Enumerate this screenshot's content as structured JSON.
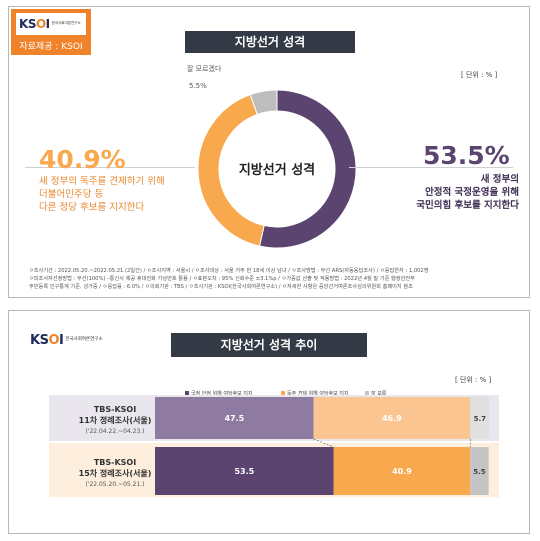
{
  "panel1": {
    "logo": {
      "brand_text": "KSOI",
      "sub_text": "한국사회여론연구소",
      "source_caption": "자료제공 : KSOI"
    },
    "title": "지방선거 성격",
    "unit": "[ 단위 : % ]",
    "center_label": "지방선거 성격",
    "left_block": {
      "value": "40.9%",
      "lines": [
        "새 정부의 독주를 견제하기 위해",
        "더불어민주당 등",
        "다른 정당 후보를 지지한다"
      ]
    },
    "right_block": {
      "value": "53.5%",
      "lines": [
        "새 정부의",
        "안정적 국정운영을 위해",
        "국민의힘 후보를 지지한다"
      ]
    },
    "dk_block": {
      "label": "잘 모르겠다",
      "value": "5.5%"
    },
    "notes": [
      "ㅇ조사기간 : 2022.05.20.~2022.05.21.(2일간)  /  ㅇ조사지역 : 서울시  /  ㅇ조사대상 : 서울 거주 만 18세 이상 남녀  /  ㅇ조사방법 : 무선 ARS(자동응답조사)  /  ㅇ응답완자 : 1,002명",
      "ㅇ피조사자선정방법 : 무선(100%) –통신사 제공 휴대전화 가상번호 활용  /  ㅇ표본오차 : 95% 신뢰수준 ±3.1%p  /  ㅇ가중값 산출 및 적용방법 : 2022년 4월 말 기준 행정안전부",
      "주민등록 인구통계 기준, 성가중  /  ㅇ응답률 : 6.0%  /  ㅇ의뢰기관 : TBS  /  ㅇ조사기관 : KSOI(한국사회여론연구소)  /  ㅇ자세한 사항은 중앙선거여론조사심의위원회 홈페이지 참조"
    ]
  },
  "panel2": {
    "logo": {
      "brand_text": "KSOI",
      "sub_text": "한국사회여론연구소"
    },
    "title": "지방선거 성격 추이",
    "unit": "[ 단위 : % ]"
  },
  "colors": {
    "stable": "#5b4470",
    "check": "#f8a84d",
    "dk": "#c4c4c4",
    "stable_light": "#8f7aa1",
    "check_light": "#fbc591",
    "orange": "#f0832a",
    "navy": "#1d2c5a"
  },
  "chart_data": [
    {
      "type": "pie",
      "title": "지방선거 성격",
      "categories": [
        "새 정부의 안정적 국정운영을 위해 국민의힘 후보를 지지한다",
        "새 정부의 독주를 견제하기 위해 더불어민주당 등 다른 정당 후보를 지지한다",
        "잘 모르겠다"
      ],
      "values": [
        53.5,
        40.9,
        5.5
      ],
      "unit": "%"
    },
    {
      "type": "bar",
      "orientation": "horizontal",
      "stacked": true,
      "title": "지방선거 성격 추이",
      "categories": [
        {
          "line1": "TBS-KSOI",
          "line2": "11차 정례조사(서울)",
          "line3": "('22.04.22.~04.23.)"
        },
        {
          "line1": "TBS-KSOI",
          "line2": "15차 정례조사(서울)",
          "line3": "('22.05.20.~05.21.)"
        }
      ],
      "series": [
        {
          "name": "국정 안정 위해 여당후보 지지",
          "values": [
            47.5,
            53.5
          ]
        },
        {
          "name": "독주 견제 위해 야당후보 지지",
          "values": [
            46.9,
            40.9
          ]
        },
        {
          "name": "잘 모름",
          "values": [
            5.7,
            5.5
          ]
        }
      ],
      "xlim": [
        0,
        100
      ],
      "legend": "top"
    }
  ]
}
